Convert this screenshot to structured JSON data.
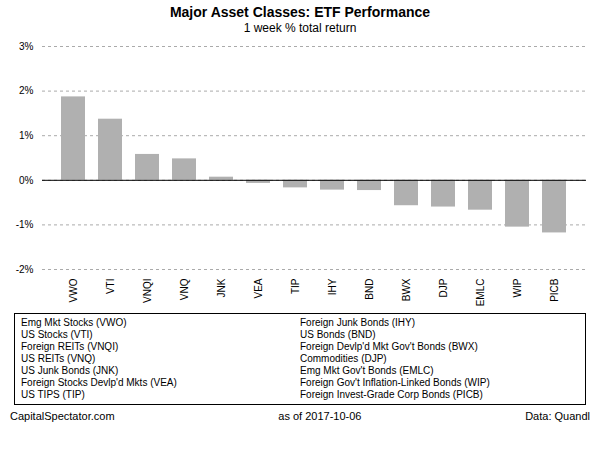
{
  "chart_data": {
    "type": "bar",
    "title": "Major Asset Classes: ETF Performance",
    "subtitle": "1 week % total return",
    "categories": [
      "VWO",
      "VTI",
      "VNQI",
      "VNQ",
      "JNK",
      "VEA",
      "TIP",
      "IHY",
      "BND",
      "BWX",
      "DJP",
      "EMLC",
      "WIP",
      "PICB"
    ],
    "values": [
      1.87,
      1.37,
      0.58,
      0.48,
      0.07,
      -0.07,
      -0.17,
      -0.22,
      -0.23,
      -0.57,
      -0.6,
      -0.67,
      -1.05,
      -1.18
    ],
    "color": "#b0b0b0",
    "ylim": [
      -2.0,
      3.0
    ],
    "yticks": [
      {
        "value": -2,
        "label": "-2%"
      },
      {
        "value": -1,
        "label": "-1%"
      },
      {
        "value": 0,
        "label": "0%"
      },
      {
        "value": 1,
        "label": "1%"
      },
      {
        "value": 2,
        "label": "2%"
      },
      {
        "value": 3,
        "label": "3%"
      }
    ],
    "grid": true,
    "annotations": [
      "Emg Mkt Stocks (VWO)",
      "US Stocks (VTI)",
      "Foreign REITs (VNQI)",
      "US REITs (VNQ)",
      "US Junk Bonds (JNK)",
      "Foreign Stocks Devlp'd Mkts (VEA)",
      "US TIPS (TIP)",
      "Foreign Junk Bonds (IHY)",
      "US Bonds (BND)",
      "Foreign Devlp'd Mkt Gov't Bonds (BWX)",
      "Commodities (DJP)",
      "Emg Mkt Gov't Bonds (EMLC)",
      "Foreign Gov't Inflation-Linked Bonds (WIP)",
      "Foreign Invest-Grade Corp Bonds (PICB)"
    ],
    "footer": [
      "CapitalSpectator.com",
      "as of  2017-10-06",
      "Data: Quandl"
    ]
  }
}
